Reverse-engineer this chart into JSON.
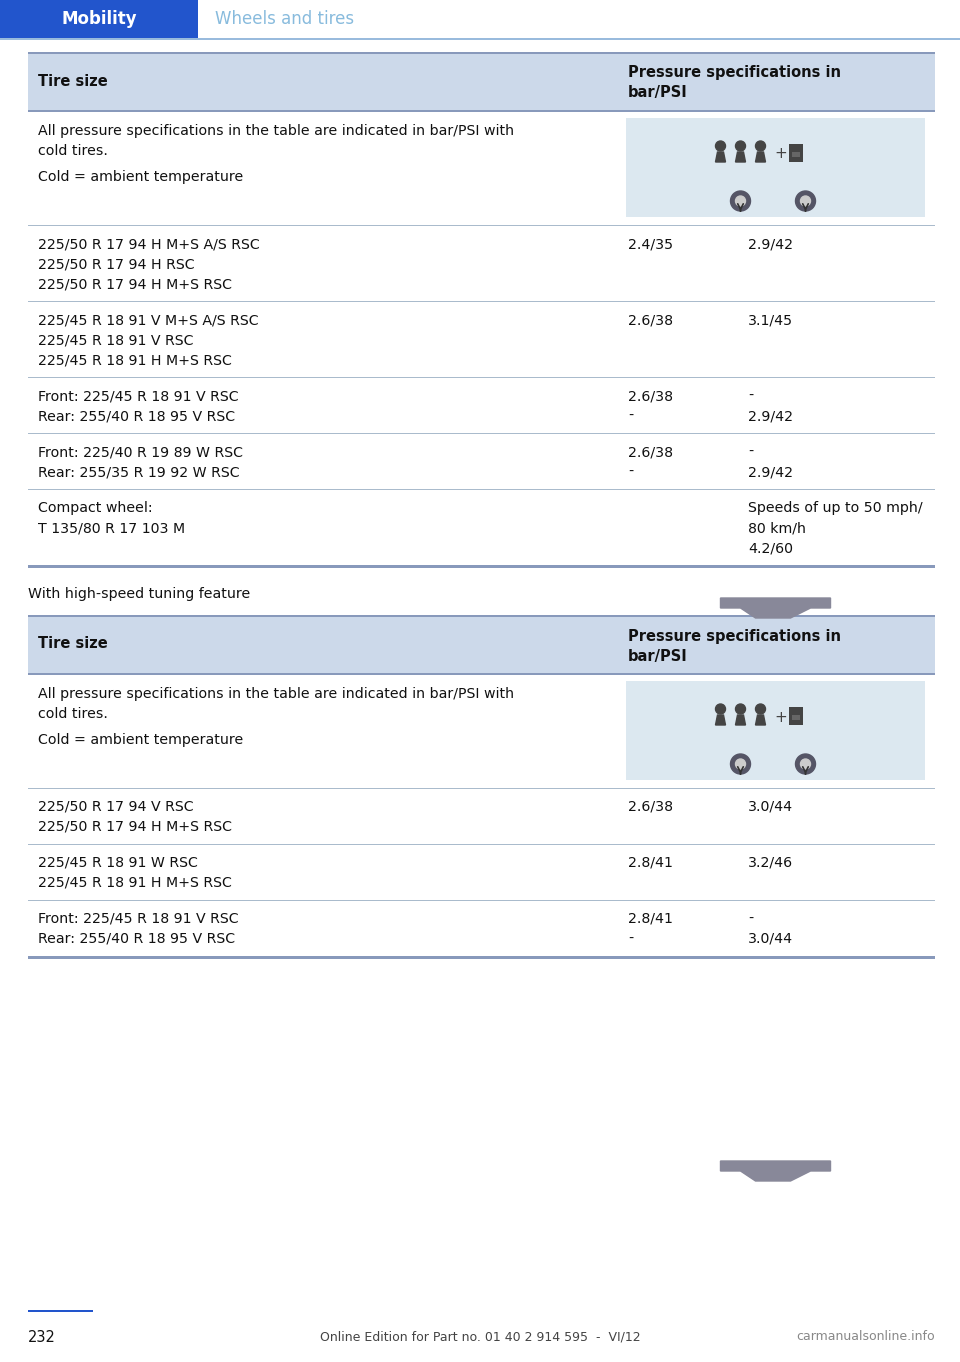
{
  "page_bg": "#ffffff",
  "header_blue": "#2255cc",
  "header_text_blue": "#88bbdd",
  "header_label": "Mobility",
  "header_subtitle": "Wheels and tires",
  "table_header_bg": "#ccd9ea",
  "table_border_color": "#aabbcc",
  "table_border_thick": "#8899bb",
  "col1_header": "Tire size",
  "col2_header": "Pressure specifications in\nbar/PSI",
  "note_line1": "All pressure specifications in the table are indicated in bar/PSI with",
  "note_line2": "cold tires.",
  "note_line3": "Cold = ambient temperature",
  "table1_rows": [
    {
      "tire_lines": [
        "225/50 R 17 94 H M+S A/S RSC",
        "225/50 R 17 94 H RSC",
        "225/50 R 17 94 H M+S RSC"
      ],
      "p1_lines": [
        "2.4/35",
        "",
        ""
      ],
      "p2_lines": [
        "2.9/42",
        "",
        ""
      ]
    },
    {
      "tire_lines": [
        "225/45 R 18 91 V M+S A/S RSC",
        "225/45 R 18 91 V RSC",
        "225/45 R 18 91 H M+S RSC"
      ],
      "p1_lines": [
        "2.6/38",
        "",
        ""
      ],
      "p2_lines": [
        "3.1/45",
        "",
        ""
      ]
    },
    {
      "tire_lines": [
        "Front: 225/45 R 18 91 V RSC",
        "Rear: 255/40 R 18 95 V RSC"
      ],
      "p1_lines": [
        "2.6/38",
        "-"
      ],
      "p2_lines": [
        "-",
        "2.9/42"
      ]
    },
    {
      "tire_lines": [
        "Front: 225/40 R 19 89 W RSC",
        "Rear: 255/35 R 19 92 W RSC"
      ],
      "p1_lines": [
        "2.6/38",
        "-"
      ],
      "p2_lines": [
        "-",
        "2.9/42"
      ]
    },
    {
      "tire_lines": [
        "Compact wheel:",
        "T 135/80 R 17 103 M"
      ],
      "p1_lines": [
        "",
        ""
      ],
      "p2_lines": [
        "Speeds of up to 50 mph/",
        "80 km/h",
        "4.2/60"
      ]
    }
  ],
  "between_tables_text": "With high-speed tuning feature",
  "table2_rows": [
    {
      "tire_lines": [
        "225/50 R 17 94 V RSC",
        "225/50 R 17 94 H M+S RSC"
      ],
      "p1_lines": [
        "2.6/38",
        ""
      ],
      "p2_lines": [
        "3.0/44",
        ""
      ]
    },
    {
      "tire_lines": [
        "225/45 R 18 91 W RSC",
        "225/45 R 18 91 H M+S RSC"
      ],
      "p1_lines": [
        "2.8/41",
        ""
      ],
      "p2_lines": [
        "3.2/46",
        ""
      ]
    },
    {
      "tire_lines": [
        "Front: 225/45 R 18 91 V RSC",
        "Rear: 255/40 R 18 95 V RSC"
      ],
      "p1_lines": [
        "2.8/41",
        "-"
      ],
      "p2_lines": [
        "-",
        "3.0/44"
      ]
    }
  ],
  "footer_page": "232",
  "footer_text": "Online Edition for Part no. 01 40 2 914 595  -  VI/12",
  "footer_right": "carmanualsonline.info",
  "fig_w": 9.6,
  "fig_h": 13.62,
  "dpi": 100
}
